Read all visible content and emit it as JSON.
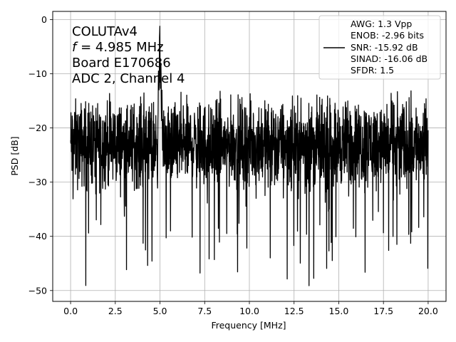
{
  "chart_data": {
    "type": "line",
    "xlabel": "Frequency [MHz]",
    "ylabel": "PSD [dB]",
    "xlim": [
      -1.0,
      21.0
    ],
    "ylim": [
      -52.0,
      1.5
    ],
    "x_ticks": [
      0.0,
      2.5,
      5.0,
      7.5,
      10.0,
      12.5,
      15.0,
      17.5,
      20.0
    ],
    "x_tick_labels": [
      "0.0",
      "2.5",
      "5.0",
      "7.5",
      "10.0",
      "12.5",
      "15.0",
      "17.5",
      "20.0"
    ],
    "y_ticks": [
      0,
      -10,
      -20,
      -30,
      -40,
      -50
    ],
    "y_tick_labels": [
      "0",
      "−10",
      "−20",
      "−30",
      "−40",
      "−50"
    ],
    "grid": true,
    "annotation_lines": [
      {
        "text": "COLUTAv4"
      },
      {
        "italic": "f",
        "text": " = 4.985 MHz"
      },
      {
        "text": "Board E170686"
      },
      {
        "text": "ADC 2, Channel 4"
      }
    ],
    "legend": {
      "placement": "upper right",
      "lines": [
        "AWG: 1.3 Vpp",
        "ENOB: -2.96 bits",
        "SNR: -15.92 dB",
        "SINAD: -16.06 dB",
        "SFDR: 1.5"
      ]
    },
    "series": [
      {
        "color": "#000000",
        "x_range": [
          0.0,
          20.0
        ],
        "n_points": 2048,
        "noise_floor_db": -23,
        "noise_band_db": [
          -33,
          -13
        ],
        "min_db": -49.5,
        "peaks": [
          {
            "x": 4.985,
            "y": 0.0
          },
          {
            "x": 5.05,
            "y": -6.0
          },
          {
            "x": 4.92,
            "y": -7.5
          },
          {
            "x": 5.11,
            "y": -13.0
          }
        ]
      }
    ]
  }
}
